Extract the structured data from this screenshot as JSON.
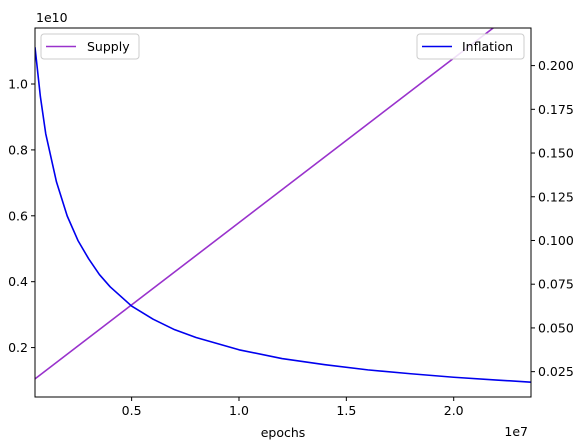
{
  "chart_data": {
    "type": "line",
    "xlabel": "epochs",
    "x_offset_label": "1e7",
    "y_left_offset_label": "1e10",
    "xlim": [
      0.05,
      2.36
    ],
    "ylim_left": [
      0.05,
      1.17
    ],
    "ylim_right": [
      0.0105,
      0.2215
    ],
    "x_ticks": [
      0.5,
      1.0,
      1.5,
      2.0
    ],
    "x_tick_labels": [
      "0.5",
      "1.0",
      "1.5",
      "2.0"
    ],
    "y_left_ticks": [
      0.2,
      0.4,
      0.6,
      0.8,
      1.0
    ],
    "y_left_tick_labels": [
      "0.2",
      "0.4",
      "0.6",
      "0.8",
      "1.0"
    ],
    "y_right_ticks": [
      0.025,
      0.05,
      0.075,
      0.1,
      0.125,
      0.15,
      0.175,
      0.2
    ],
    "y_right_tick_labels": [
      "0.025",
      "0.050",
      "0.075",
      "0.100",
      "0.125",
      "0.150",
      "0.175",
      "0.200"
    ],
    "series": [
      {
        "name": "Supply",
        "axis": "left",
        "color": "#9932CC",
        "x": [
          0.05,
          2.36
        ],
        "y": [
          0.105,
          1.258
        ]
      },
      {
        "name": "Inflation",
        "axis": "right",
        "color": "#0000ee",
        "x": [
          0.05,
          0.075,
          0.1,
          0.15,
          0.2,
          0.25,
          0.3,
          0.35,
          0.4,
          0.5,
          0.6,
          0.7,
          0.8,
          1.0,
          1.2,
          1.4,
          1.6,
          1.8,
          2.0,
          2.2,
          2.36
        ],
        "y": [
          0.2105,
          0.1823,
          0.161,
          0.1335,
          0.114,
          0.1,
          0.0895,
          0.0805,
          0.0735,
          0.0625,
          0.055,
          0.049,
          0.0445,
          0.0375,
          0.0325,
          0.029,
          0.026,
          0.0238,
          0.0218,
          0.0202,
          0.019
        ]
      }
    ],
    "legends": [
      {
        "placement": "upper left",
        "entries": [
          "Supply"
        ]
      },
      {
        "placement": "upper right",
        "entries": [
          "Inflation"
        ]
      }
    ]
  }
}
